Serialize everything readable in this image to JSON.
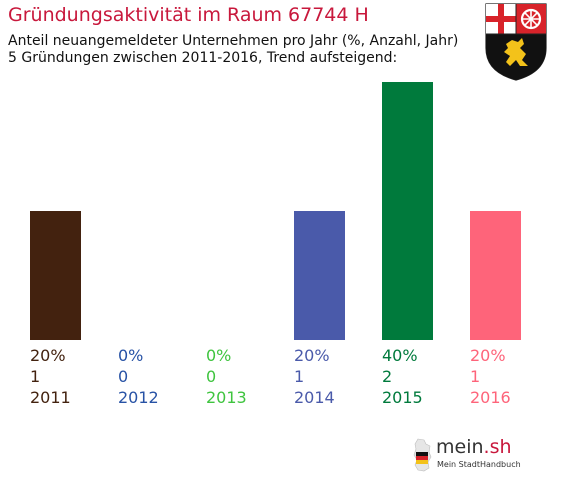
{
  "header": {
    "title": "Gründungsaktivität im Raum 67744 H",
    "subtitle_line1": "Anteil neuangemeldeter Unternehmen pro Jahr (%, Anzahl, Jahr)",
    "subtitle_line2": "5 Gründungen zwischen 2011-2016, Trend aufsteigend:"
  },
  "crest": {
    "icon": "rhineland-palatinate-coat-of-arms-icon"
  },
  "chart_data": {
    "type": "bar",
    "categories": [
      "2011",
      "2012",
      "2013",
      "2014",
      "2015",
      "2016"
    ],
    "values": [
      20,
      0,
      0,
      20,
      40,
      20
    ],
    "value_labels": [
      "20%",
      "0%",
      "0%",
      "20%",
      "40%",
      "20%"
    ],
    "counts": [
      "1",
      "0",
      "0",
      "1",
      "2",
      "1"
    ],
    "colors": [
      "#43220f",
      "#2752a5",
      "#3fc43f",
      "#4a5aaa",
      "#007a3c",
      "#fe647a"
    ],
    "ylim": [
      0,
      40
    ],
    "grid": false,
    "legend": "none"
  },
  "footer": {
    "brand_main": "mein",
    "brand_accent": ".sh",
    "brand_sub": "Mein StadtHandbuch",
    "icon": "germany-map-icon"
  }
}
